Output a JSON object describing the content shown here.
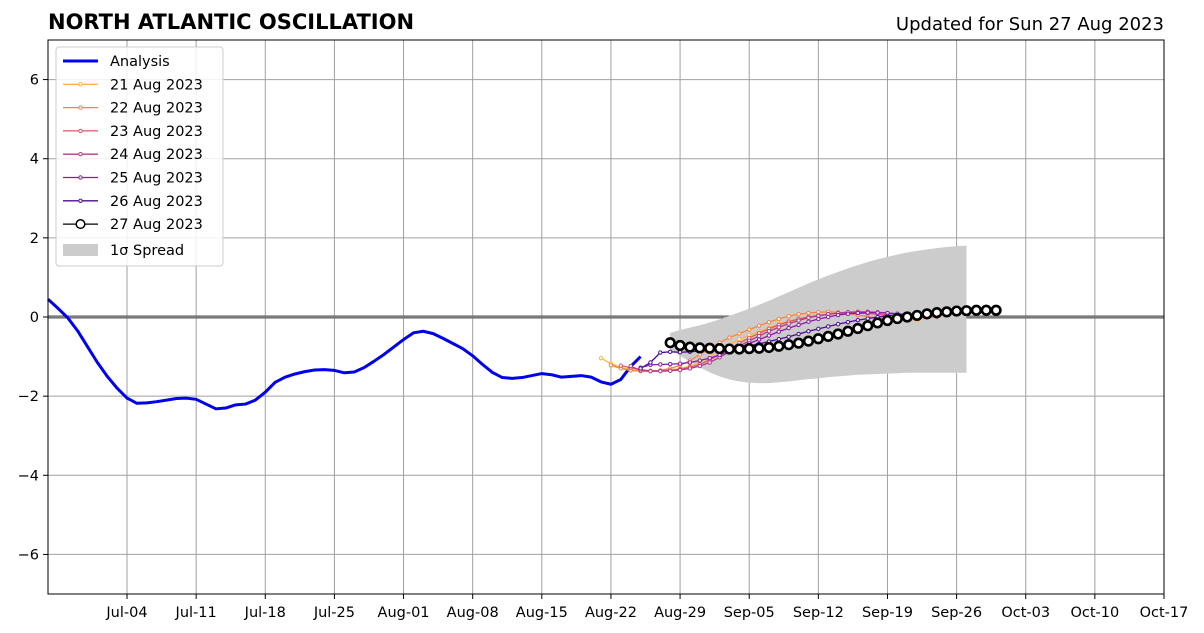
{
  "chart_data": {
    "type": "line",
    "title": "NORTH ATLANTIC OSCILLATION",
    "subtitle": "Updated for Sun 27 Aug 2023",
    "x_range": [
      "2023-06-26",
      "2023-10-17"
    ],
    "ylim": [
      -7,
      7
    ],
    "grid": true,
    "legend_position": "upper-left",
    "zero_line": 0,
    "x_ticks": [
      {
        "date": "2023-07-04",
        "label": "Jul-04"
      },
      {
        "date": "2023-07-11",
        "label": "Jul-11"
      },
      {
        "date": "2023-07-18",
        "label": "Jul-18"
      },
      {
        "date": "2023-07-25",
        "label": "Jul-25"
      },
      {
        "date": "2023-08-01",
        "label": "Aug-01"
      },
      {
        "date": "2023-08-08",
        "label": "Aug-08"
      },
      {
        "date": "2023-08-15",
        "label": "Aug-15"
      },
      {
        "date": "2023-08-22",
        "label": "Aug-22"
      },
      {
        "date": "2023-08-29",
        "label": "Aug-29"
      },
      {
        "date": "2023-09-05",
        "label": "Sep-05"
      },
      {
        "date": "2023-09-12",
        "label": "Sep-12"
      },
      {
        "date": "2023-09-19",
        "label": "Sep-19"
      },
      {
        "date": "2023-09-26",
        "label": "Sep-26"
      },
      {
        "date": "2023-10-03",
        "label": "Oct-03"
      },
      {
        "date": "2023-10-10",
        "label": "Oct-10"
      },
      {
        "date": "2023-10-17",
        "label": "Oct-17"
      }
    ],
    "y_ticks": [
      {
        "value": 6,
        "label": "6"
      },
      {
        "value": 4,
        "label": "4"
      },
      {
        "value": 2,
        "label": "2"
      },
      {
        "value": 0,
        "label": "0"
      },
      {
        "value": -2,
        "label": "−2"
      },
      {
        "value": -4,
        "label": "−4"
      },
      {
        "value": -6,
        "label": "−6"
      }
    ],
    "analysis": {
      "name": "Analysis",
      "color": "#0000ee",
      "start": "2023-06-26",
      "values": [
        0.45,
        0.22,
        -0.02,
        -0.35,
        -0.75,
        -1.15,
        -1.5,
        -1.8,
        -2.05,
        -2.18,
        -2.17,
        -2.14,
        -2.1,
        -2.06,
        -2.05,
        -2.08,
        -2.2,
        -2.32,
        -2.3,
        -2.22,
        -2.2,
        -2.1,
        -1.9,
        -1.65,
        -1.52,
        -1.44,
        -1.38,
        -1.34,
        -1.33,
        -1.35,
        -1.41,
        -1.39,
        -1.28,
        -1.12,
        -0.95,
        -0.76,
        -0.57,
        -0.4,
        -0.36,
        -0.42,
        -0.54,
        -0.67,
        -0.8,
        -0.98,
        -1.2,
        -1.4,
        -1.53,
        -1.55,
        -1.53,
        -1.48,
        -1.43,
        -1.46,
        -1.52,
        -1.5,
        -1.48,
        -1.52,
        -1.64,
        -1.7,
        -1.58,
        -1.25,
        -1.0
      ]
    },
    "forecasts": [
      {
        "name": "21 Aug 2023",
        "color": "#ffb340",
        "marker": "small",
        "start": "2023-08-21",
        "values": [
          -1.04,
          -1.18,
          -1.28,
          -1.32,
          -1.35,
          -1.36,
          -1.36,
          -1.34,
          -1.3,
          -1.24,
          -1.14,
          -1.0,
          -0.85,
          -0.7,
          -0.56,
          -0.46,
          -0.37,
          -0.28,
          -0.18,
          -0.1,
          -0.04,
          0.0,
          0.04,
          0.07,
          0.1,
          0.12,
          0.14,
          0.12,
          0.08,
          0.05,
          0.0,
          -0.05,
          -0.08
        ]
      },
      {
        "name": "22 Aug 2023",
        "color": "#f58540",
        "marker": "small",
        "start": "2023-08-22",
        "values": [
          -1.22,
          -1.3,
          -1.35,
          -1.37,
          -1.37,
          -1.35,
          -1.3,
          -1.22,
          -1.1,
          -0.95,
          -0.8,
          -0.65,
          -0.52,
          -0.42,
          -0.32,
          -0.22,
          -0.13,
          -0.05,
          0.02,
          0.07,
          0.1,
          0.12,
          0.13,
          0.12,
          0.09,
          0.05,
          0.01,
          -0.03,
          -0.05,
          -0.07,
          -0.05,
          -0.03,
          -0.02
        ]
      },
      {
        "name": "23 Aug 2023",
        "color": "#e05568",
        "marker": "small",
        "start": "2023-08-23",
        "values": [
          -1.23,
          -1.28,
          -1.33,
          -1.36,
          -1.36,
          -1.35,
          -1.32,
          -1.27,
          -1.2,
          -1.08,
          -0.95,
          -0.8,
          -0.66,
          -0.53,
          -0.41,
          -0.3,
          -0.2,
          -0.12,
          -0.05,
          0.0,
          0.04,
          0.07,
          0.09,
          0.1,
          0.1,
          0.09,
          0.07,
          0.05,
          0.03,
          0.02,
          0.01,
          0.0,
          0.0
        ]
      },
      {
        "name": "24 Aug 2023",
        "color": "#b33c8c",
        "marker": "small",
        "start": "2023-08-24",
        "values": [
          -1.24,
          -1.35,
          -1.37,
          -1.37,
          -1.36,
          -1.34,
          -1.3,
          -1.24,
          -1.15,
          -1.02,
          -0.88,
          -0.74,
          -0.6,
          -0.48,
          -0.36,
          -0.26,
          -0.17,
          -0.09,
          -0.02,
          0.03,
          0.07,
          0.1,
          0.12,
          0.13,
          0.13,
          0.12,
          0.1,
          0.08,
          0.06,
          0.05
        ]
      },
      {
        "name": "25 Aug 2023",
        "color": "#8b1aa8",
        "marker": "small",
        "start": "2023-08-25",
        "values": [
          -1.28,
          -1.21,
          -1.2,
          -1.19,
          -1.18,
          -1.15,
          -1.1,
          -1.04,
          -0.96,
          -0.87,
          -0.77,
          -0.67,
          -0.57,
          -0.47,
          -0.37,
          -0.28,
          -0.2,
          -0.12,
          -0.05,
          0.0,
          0.05,
          0.08,
          0.1,
          0.11,
          0.11,
          0.1,
          0.08,
          0.06
        ]
      },
      {
        "name": "26 Aug 2023",
        "color": "#4a0c96",
        "marker": "small",
        "start": "2023-08-25",
        "values": [
          -1.3,
          -1.15,
          -0.9,
          -0.88,
          -0.89,
          -0.88,
          -0.86,
          -0.84,
          -0.82,
          -0.8,
          -0.77,
          -0.73,
          -0.68,
          -0.62,
          -0.56,
          -0.5,
          -0.43,
          -0.36,
          -0.3,
          -0.24,
          -0.18,
          -0.13,
          -0.08,
          -0.04,
          0.0,
          0.03,
          0.05,
          0.06
        ]
      },
      {
        "name": "27 Aug 2023",
        "color": "#000000",
        "marker": "large",
        "start": "2023-08-28",
        "values": [
          -0.65,
          -0.72,
          -0.76,
          -0.78,
          -0.79,
          -0.8,
          -0.81,
          -0.81,
          -0.8,
          -0.79,
          -0.77,
          -0.74,
          -0.7,
          -0.66,
          -0.61,
          -0.55,
          -0.49,
          -0.43,
          -0.36,
          -0.29,
          -0.22,
          -0.15,
          -0.09,
          -0.04,
          0.0,
          0.04,
          0.08,
          0.11,
          0.13,
          0.15,
          0.16,
          0.17,
          0.17,
          0.17
        ]
      }
    ],
    "spread": {
      "name": "1σ Spread",
      "color": "#cccccc",
      "start": "2023-08-28",
      "upper": [
        -0.4,
        -0.33,
        -0.27,
        -0.21,
        -0.14,
        -0.06,
        0.03,
        0.12,
        0.21,
        0.31,
        0.41,
        0.52,
        0.63,
        0.74,
        0.85,
        0.95,
        1.05,
        1.14,
        1.23,
        1.31,
        1.39,
        1.46,
        1.52,
        1.58,
        1.63,
        1.67,
        1.71,
        1.74,
        1.77,
        1.79,
        1.8
      ],
      "lower": [
        -0.82,
        -0.98,
        -1.13,
        -1.27,
        -1.4,
        -1.5,
        -1.58,
        -1.63,
        -1.66,
        -1.67,
        -1.67,
        -1.65,
        -1.63,
        -1.6,
        -1.57,
        -1.55,
        -1.52,
        -1.5,
        -1.48,
        -1.46,
        -1.45,
        -1.44,
        -1.43,
        -1.42,
        -1.41,
        -1.41,
        -1.41,
        -1.41,
        -1.41,
        -1.41,
        -1.41
      ]
    }
  }
}
